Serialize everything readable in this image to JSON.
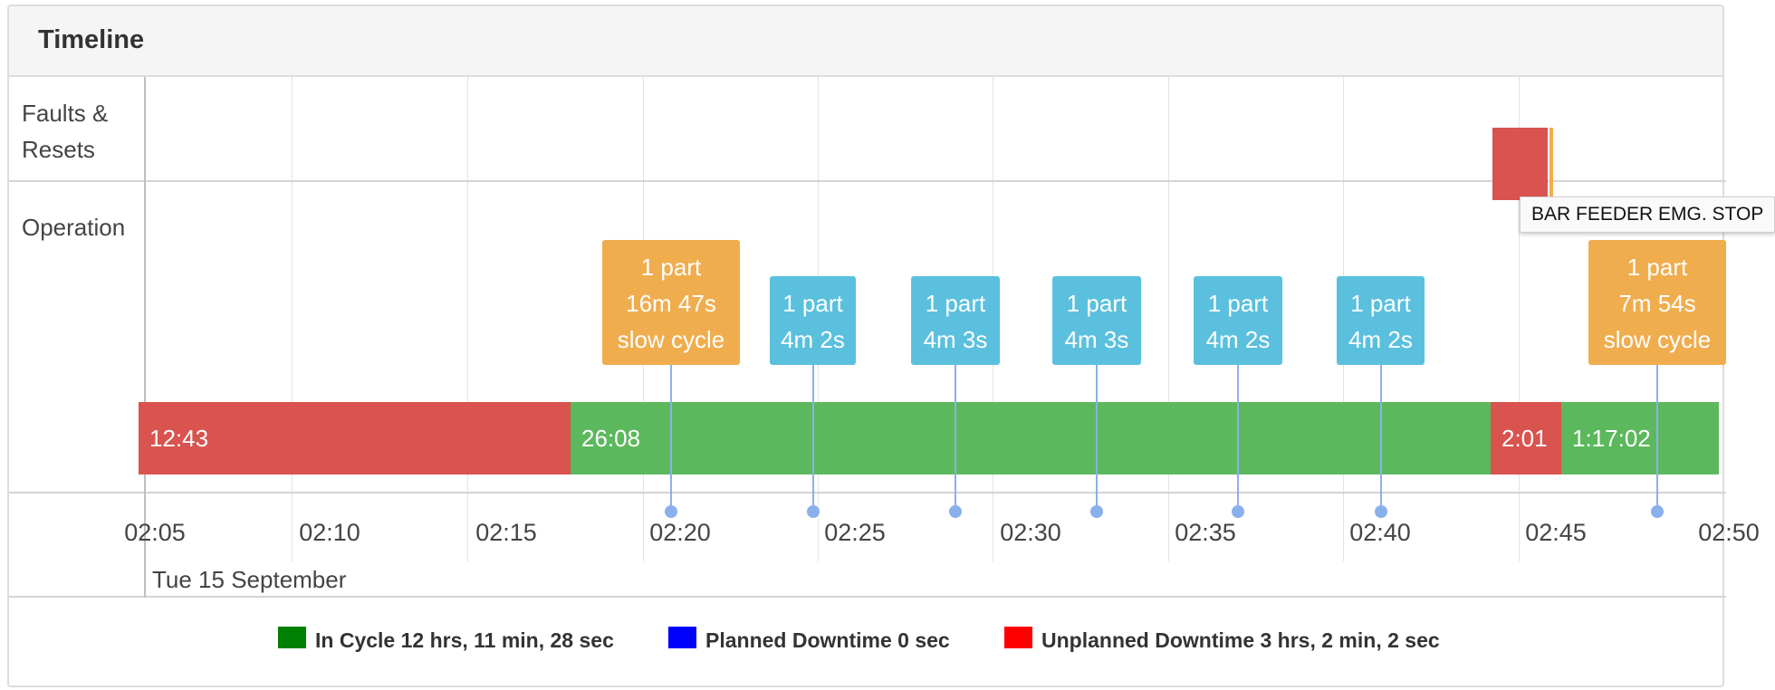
{
  "panel": {
    "title": "Timeline"
  },
  "rows": {
    "faults_line1": "Faults &",
    "faults_line2": "Resets",
    "operation": "Operation"
  },
  "segments": [
    {
      "label": "12:43",
      "status": "unplanned",
      "color": "#d9534f"
    },
    {
      "label": "26:08",
      "status": "in_cycle",
      "color": "#5cb85c"
    },
    {
      "label": "2:01",
      "status": "unplanned",
      "color": "#d9534f"
    },
    {
      "label": "1:17:02",
      "status": "in_cycle",
      "color": "#5cb85c"
    }
  ],
  "markers": [
    {
      "line1": "1 part",
      "line2": "16m 47s",
      "line3": "slow cycle",
      "color": "#f0ad4e"
    },
    {
      "line1": "1 part",
      "line2": "4m 2s",
      "line3": "",
      "color": "#5bc0de"
    },
    {
      "line1": "1 part",
      "line2": "4m 3s",
      "line3": "",
      "color": "#5bc0de"
    },
    {
      "line1": "1 part",
      "line2": "4m 3s",
      "line3": "",
      "color": "#5bc0de"
    },
    {
      "line1": "1 part",
      "line2": "4m 2s",
      "line3": "",
      "color": "#5bc0de"
    },
    {
      "line1": "1 part",
      "line2": "4m 2s",
      "line3": "",
      "color": "#5bc0de"
    },
    {
      "line1": "1 part",
      "line2": "7m 54s",
      "line3": "slow cycle",
      "color": "#f0ad4e"
    }
  ],
  "axis": {
    "ticks": [
      "02:05",
      "02:10",
      "02:15",
      "02:20",
      "02:25",
      "02:30",
      "02:35",
      "02:40",
      "02:45",
      "02:50"
    ],
    "date": "Tue 15 September"
  },
  "faults": {
    "tooltip": "BAR FEEDER EMG. STOP"
  },
  "legend": [
    {
      "label": "In Cycle 12 hrs, 11 min, 28 sec",
      "color": "#008000"
    },
    {
      "label": "Planned Downtime 0 sec",
      "color": "#0000ff"
    },
    {
      "label": "Unplanned Downtime 3 hrs, 2 min, 2 sec",
      "color": "#ff0000"
    }
  ]
}
